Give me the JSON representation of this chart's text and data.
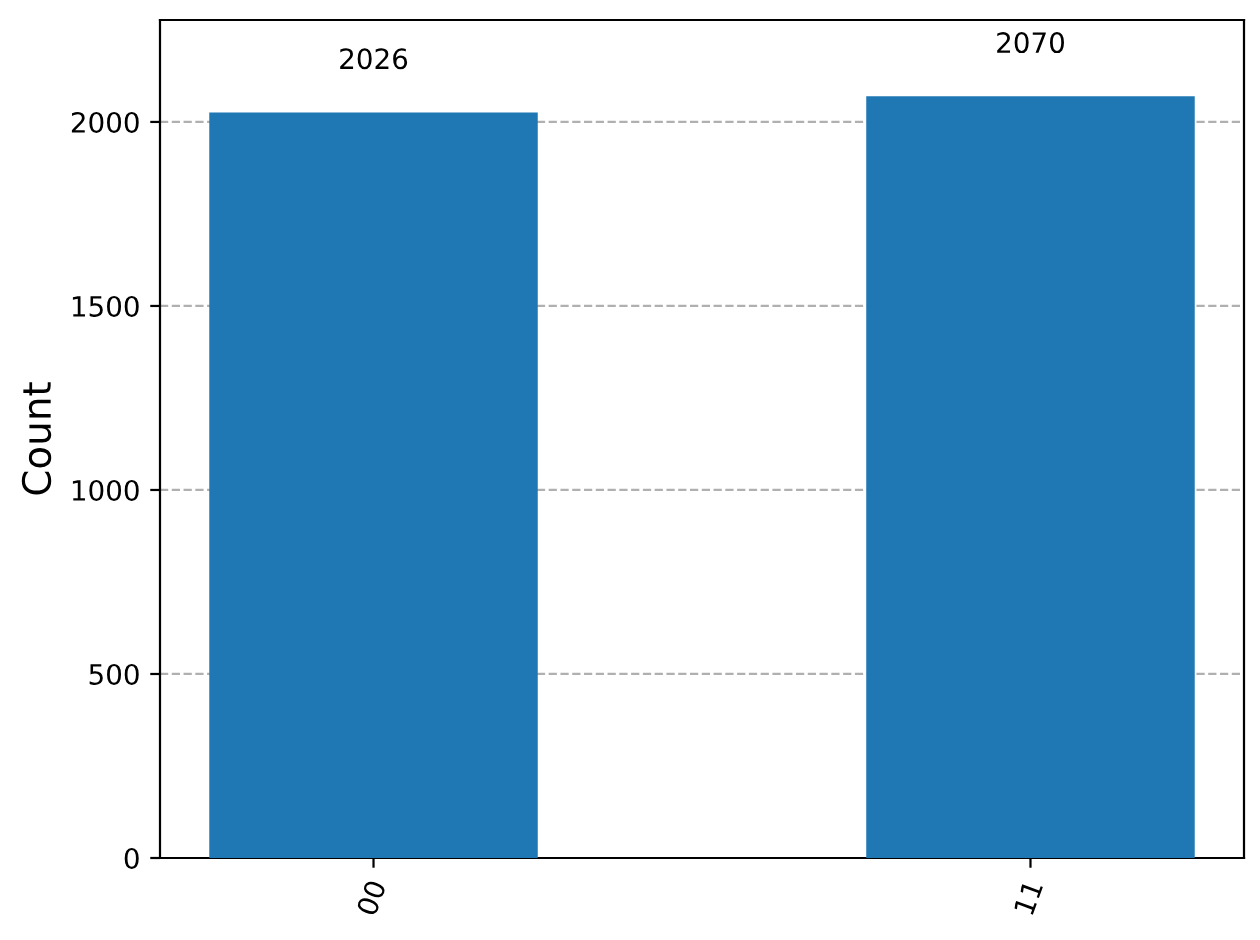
{
  "chart_data": {
    "type": "bar",
    "ylabel": "Count",
    "categories": [
      "00",
      "11"
    ],
    "values": [
      2026,
      2070
    ],
    "color": "#1f77b4",
    "ylim": [
      0,
      2277
    ],
    "yticks": [
      0,
      500,
      1000,
      1500,
      2000
    ],
    "grid": "y",
    "data_labels": true
  }
}
